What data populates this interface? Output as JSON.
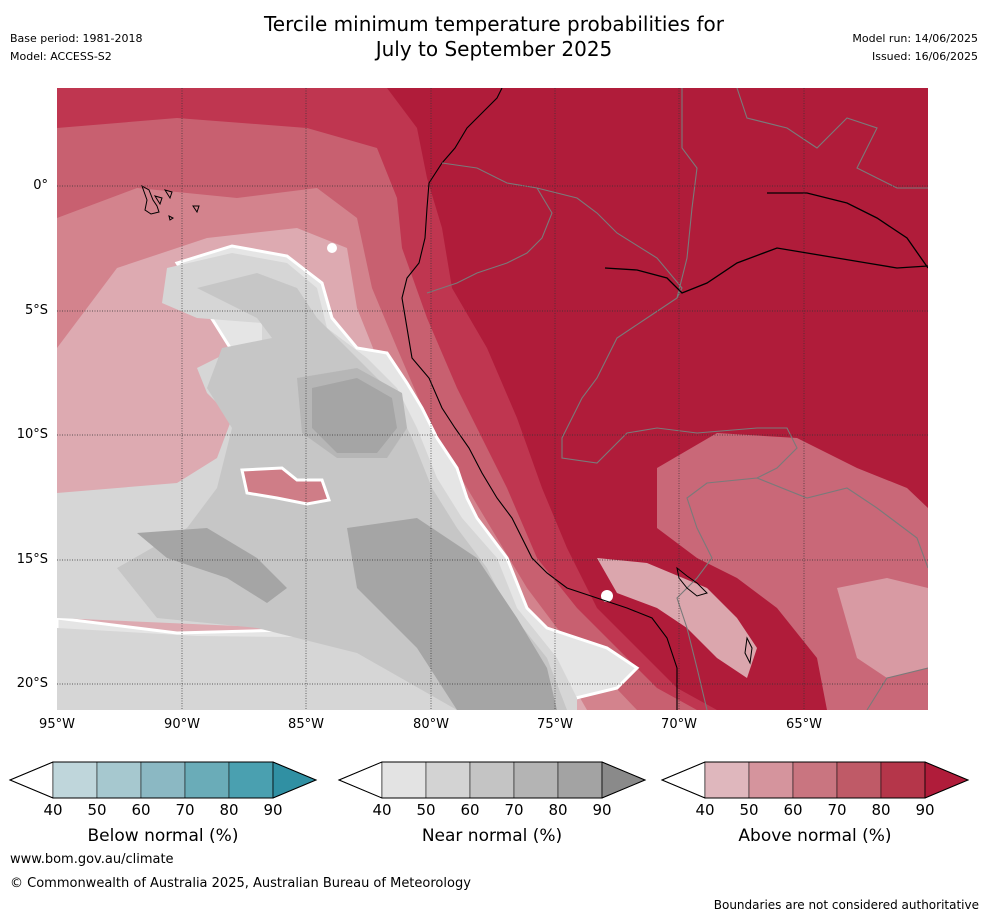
{
  "title_line1": "Tercile minimum temperature probabilities for",
  "title_line2": "July to September 2025",
  "base_period": "Base period: 1981-2018",
  "model": "Model: ACCESS-S2",
  "model_run": "Model run: 14/06/2025",
  "issued": "Issued: 16/06/2025",
  "lat_labels": [
    "0°",
    "5°S",
    "10°S",
    "15°S",
    "20°S"
  ],
  "lon_labels": [
    "95°W",
    "90°W",
    "85°W",
    "80°W",
    "75°W",
    "70°W",
    "65°W"
  ],
  "colorbars": [
    {
      "title": "Below normal (%)",
      "ticks": [
        "40",
        "50",
        "60",
        "70",
        "80",
        "90"
      ],
      "colors": [
        "#ffffff",
        "#bfd6db",
        "#a6c8cf",
        "#8bb8c3",
        "#6aacb8",
        "#4aa0b0",
        "#3090a3"
      ]
    },
    {
      "title": "Near normal (%)",
      "ticks": [
        "40",
        "50",
        "60",
        "70",
        "80",
        "90"
      ],
      "colors": [
        "#ffffff",
        "#e3e3e3",
        "#d3d3d3",
        "#c4c4c4",
        "#b4b4b4",
        "#a3a3a3",
        "#8a8a8a"
      ]
    },
    {
      "title": "Above normal (%)",
      "ticks": [
        "40",
        "50",
        "60",
        "70",
        "80",
        "90"
      ],
      "colors": [
        "#ffffff",
        "#dfb7bd",
        "#d5949d",
        "#c97580",
        "#bf5a67",
        "#b5364a",
        "#b01c3a"
      ]
    }
  ],
  "footer_url": "www.bom.gov.au/climate",
  "footer_copyright": "© Commonwealth of Australia 2025, Australian Bureau of Meteorology",
  "disclaimer": "Boundaries are not considered authoritative"
}
